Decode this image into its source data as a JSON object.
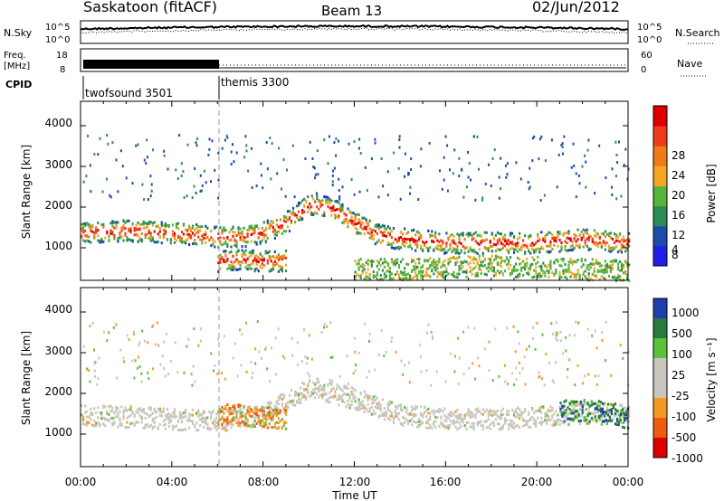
{
  "header": {
    "station": "Saskatoon (fitACF)",
    "beam": "Beam 13",
    "date": "02/Jun/2012"
  },
  "status_panels": {
    "nsky_label": "N.Sky",
    "nsky_ticks": [
      "10^5",
      "10^0"
    ],
    "nsearch_label": "N.Search",
    "nsearch_ticks": [
      "10^5",
      "10^0"
    ],
    "freq_label_line1": "Freq.",
    "freq_label_line2": "[MHz]",
    "freq_ticks": [
      "18",
      "8"
    ],
    "nave_label": "Nave",
    "nave_ticks": [
      "60",
      "0"
    ],
    "cpid_label": "CPID",
    "cpid_segments": [
      {
        "name": "twofsound 3501",
        "start_hour": 0,
        "end_hour": 6
      },
      {
        "name": "themis 3300",
        "start_hour": 6,
        "end_hour": 24
      }
    ]
  },
  "axes": {
    "ylabel": "Slant Range [km]",
    "yticks": [
      "1000",
      "2000",
      "3000",
      "4000"
    ],
    "xlabel": "Time UT",
    "xticks": [
      "00:00",
      "04:00",
      "08:00",
      "12:00",
      "16:00",
      "20:00",
      "00:00"
    ]
  },
  "colors": {
    "power": [
      "#1f1fe6",
      "#1e4aa8",
      "#2e8a54",
      "#56b43a",
      "#f5a623",
      "#f07a1a",
      "#ee3b1a",
      "#dd0000"
    ],
    "velocity": [
      "#dd0000",
      "#ee5a10",
      "#f59a20",
      "#c8c6be",
      "#c8c6be",
      "#5cc03a",
      "#2a7a3e",
      "#1f3fb0"
    ]
  },
  "chart_data": [
    {
      "type": "heatmap",
      "title": "",
      "xlabel": "Time UT",
      "ylabel": "Slant Range [km]",
      "xlim": [
        0,
        24
      ],
      "ylim": [
        200,
        4600
      ],
      "colorbar_label": "Power [dB]",
      "colorbar_ticks": [
        "4",
        "8",
        "12",
        "16",
        "20",
        "24",
        "28"
      ],
      "scatter_bands": [
        {
          "hours": [
            0,
            2,
            4,
            5,
            6,
            7,
            8,
            9,
            10,
            11,
            12,
            13,
            14,
            16,
            18,
            20,
            22,
            24
          ],
          "range_km": [
            1400,
            1450,
            1400,
            1350,
            1300,
            1300,
            1400,
            1650,
            2100,
            2000,
            1650,
            1350,
            1250,
            1150,
            1150,
            1150,
            1250,
            1150
          ],
          "power_db": 24
        },
        {
          "hours": [
            6,
            7,
            8,
            9
          ],
          "range_km": [
            700,
            750,
            700,
            700
          ],
          "power_db": 26
        },
        {
          "hours": [
            12,
            14,
            16,
            18,
            20,
            22,
            24
          ],
          "range_km": [
            500,
            500,
            550,
            600,
            550,
            500,
            450
          ],
          "power_db": 16
        }
      ]
    },
    {
      "type": "heatmap",
      "title": "",
      "xlabel": "Time UT",
      "ylabel": "Slant Range [km]",
      "xlim": [
        0,
        24
      ],
      "ylim": [
        200,
        4600
      ],
      "colorbar_label": "Velocity [m s⁻¹]",
      "colorbar_ticks": [
        "1000",
        "500",
        "100",
        "25",
        "-25",
        "-100",
        "-500",
        "-1000"
      ],
      "scatter_bands": [
        {
          "hours": [
            0,
            2,
            4,
            6,
            8,
            10,
            12,
            14,
            16,
            18,
            20,
            22,
            24
          ],
          "range_km": [
            1500,
            1450,
            1400,
            1350,
            1500,
            2200,
            1900,
            1500,
            1400,
            1400,
            1450,
            1550,
            1500
          ],
          "velocity_ms": 0
        },
        {
          "hours": [
            6,
            7,
            8,
            9
          ],
          "range_km": [
            1500,
            1500,
            1450,
            1400
          ],
          "velocity_ms": -300
        },
        {
          "hours": [
            21,
            22,
            23,
            24
          ],
          "range_km": [
            1600,
            1600,
            1600,
            1400
          ],
          "velocity_ms": 300
        }
      ]
    }
  ]
}
